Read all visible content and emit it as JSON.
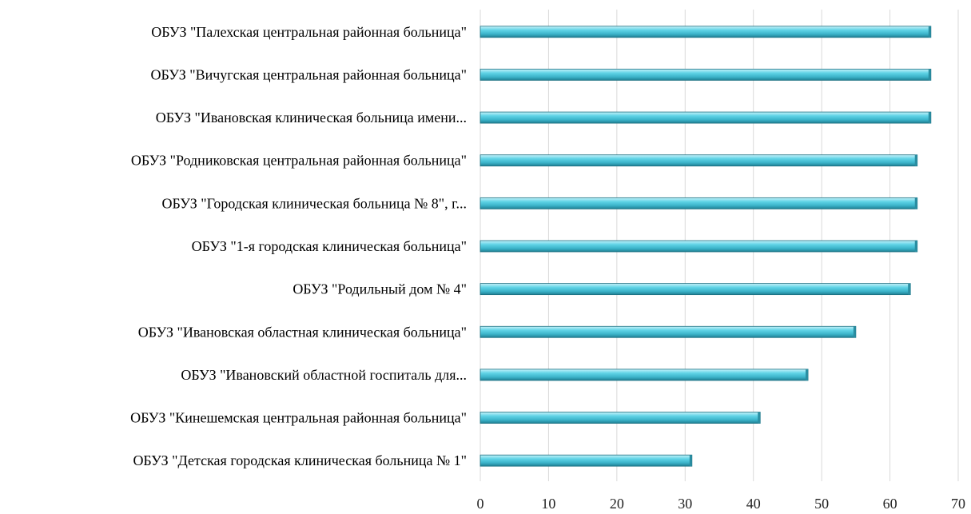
{
  "chart_data": {
    "type": "bar",
    "orientation": "horizontal",
    "title": "",
    "xlabel": "",
    "ylabel": "",
    "categories": [
      "ОБУЗ \"Палехская центральная районная больница\"",
      "ОБУЗ \"Вичугская центральная районная больница\"",
      "ОБУЗ \"Ивановская клиническая больница имени...",
      "ОБУЗ \"Родниковская центральная районная больница\"",
      "ОБУЗ \"Городская клиническая больница № 8\", г...",
      "ОБУЗ \"1-я городская клиническая больница\"",
      "ОБУЗ \"Родильный дом № 4\"",
      "ОБУЗ \"Ивановская областная клиническая больница\"",
      "ОБУЗ \"Ивановский областной госпиталь для...",
      "ОБУЗ  \"Кинешемская центральная районная больница\"",
      "ОБУЗ \"Детская городская клиническая больница № 1\""
    ],
    "values": [
      66,
      66,
      66,
      64,
      64,
      64,
      63,
      55,
      48,
      41,
      31
    ],
    "xlim": [
      0,
      70
    ],
    "x_ticks": [
      "0",
      "10",
      "20",
      "30",
      "40",
      "50",
      "60",
      "70"
    ],
    "grid": true,
    "legend": "none",
    "bar_color": "#4cc4d8"
  }
}
